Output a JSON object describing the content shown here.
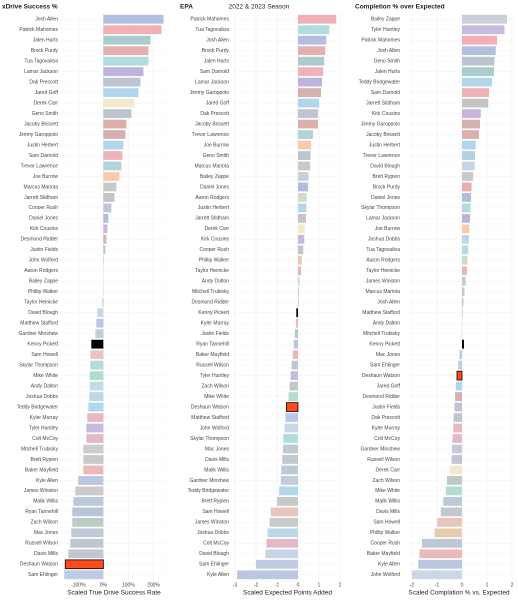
{
  "subtitle": "2022 & 2023 Season",
  "bar_colors": {
    "Josh Allen": "#b3bfdf",
    "Patrick Mahomes": "#f1b0b6",
    "Jalen Hurts": "#a9cdcd",
    "Brock Purdy": "#e6b0b0",
    "Tua Tagovailoa": "#b1dde1",
    "Lamar Jackson": "#bdb4dd",
    "Dak Prescott": "#bdc5d2",
    "Jared Goff": "#b1d6ec",
    "Derek Carr": "#f3eacb",
    "Geno Smith": "#bcc5cb",
    "Jacoby Brissett": "#dcb0aa",
    "Jimmy Garoppolo": "#d4b0b0",
    "Justin Herbert": "#b1d7ef",
    "Sam Darnold": "#f0b2b9",
    "Trevor Lawrence": "#b1d3d9",
    "Joe Burrow": "#f9cbab",
    "Marcus Mariota": "#c9c9c9",
    "Jarrett Stidham": "#c4c4c4",
    "Cooper Rush": "#bec7d6",
    "Daniel Jones": "#b3bddc",
    "Kirk Cousins": "#c8b6de",
    "Desmond Ridder": "#d6b0b4",
    "Justin Fields": "#bdc3d3",
    "John Wolford": "#cdd6e8",
    "Aaron Rodgers": "#d2dbc8",
    "Bailey Zappe": "#c9ced8",
    "Phillip Walker": "#e6ccaf",
    "Taylor Heinicke": "#e8b7b7",
    "David Blough": "#c8d5e8",
    "Matthew Stafford": "#bbc8e5",
    "Gardner Minshew": "#c3ccd8",
    "Kenny Pickett": "#000000",
    "Sam Howell": "#e8c6be",
    "Skylar Thompson": "#b1dcdc",
    "Mike White": "#b2dccd",
    "Andy Dalton": "#c4dae8",
    "Joshua Dobbs": "#bbd8e8",
    "Teddy Bridgewater": "#b1d7ea",
    "Kyler Murray": "#e8b8c5",
    "Tyler Huntley": "#c6bbdf",
    "Colt McCoy": "#e4b8c8",
    "Mitchell Trubisky": "#cccccc",
    "Brett Rypien": "#c9c9c9",
    "Baker Mayfield": "#ebb8bc",
    "Kyle Allen": "#bbc7e0",
    "James Winston": "#cbcbcb",
    "Malik Willis": "#bbc9db",
    "Ryan Tannehill": "#b5c7d9",
    "Zach Wilson": "#bccbc3",
    "Mac Jones": "#c1c8d7",
    "Russell Wilson": "#bfc6d0",
    "Davis Mills": "#c3c7ce",
    "Deshaun Watson": "#ff4a1c",
    "Sam Ehlinger": "#bdcbe4"
  },
  "outlined": [
    "Deshaun Watson"
  ],
  "chart_data": [
    {
      "type": "barh",
      "title": "xDrive Success %",
      "x_label": "Scaled True Drive Success Rate",
      "categories": [
        "Josh Allen",
        "Patrick Mahomes",
        "Jalen Hurts",
        "Brock Purdy",
        "Tua Tagovailoa",
        "Lamar Jackson",
        "Dak Prescott",
        "Jared Goff",
        "Derek Carr",
        "Geno Smith",
        "Jacoby Brissett",
        "Jimmy Garoppolo",
        "Justin Herbert",
        "Sam Darnold",
        "Trevor Lawrence",
        "Joe Burrow",
        "Marcus Mariota",
        "Jarrett Stidham",
        "Cooper Rush",
        "Daniel Jones",
        "Kirk Cousins",
        "Desmond Ridder",
        "Justin Fields",
        "John Wolford",
        "Aaron Rodgers",
        "Bailey Zappe",
        "Phillip Walker",
        "Taylor Heinicke",
        "David Blough",
        "Matthew Stafford",
        "Gardner Minshew",
        "Kenny Pickett",
        "Sam Howell",
        "Skylar Thompson",
        "Mike White",
        "Andy Dalton",
        "Joshua Dobbs",
        "Teddy Bridgewater",
        "Kyler Murray",
        "Tyler Huntley",
        "Colt McCoy",
        "Mitchell Trubisky",
        "Brett Rypien",
        "Baker Mayfield",
        "Kyle Allen",
        "James Winston",
        "Malik Willis",
        "Ryan Tannehill",
        "Zach Wilson",
        "Mac Jones",
        "Russell Wilson",
        "Davis Mills",
        "Deshaun Watson",
        "Sam Ehlinger"
      ],
      "values": [
        240,
        232,
        188,
        180,
        180,
        160,
        148,
        140,
        124,
        112,
        92,
        88,
        80,
        76,
        72,
        64,
        52,
        44,
        32,
        20,
        16,
        12,
        8,
        3,
        0,
        -1,
        -2,
        -4,
        -24,
        -28,
        -32,
        -48,
        -52,
        -52,
        -54,
        -54,
        -56,
        -60,
        -64,
        -68,
        -68,
        -80,
        -80,
        -80,
        -100,
        -112,
        -120,
        -124,
        -124,
        -128,
        -132,
        -140,
        -152,
        -156
      ],
      "xlim": [
        -165,
        250
      ],
      "xticks": [
        {
          "value": -100,
          "label": "-100%"
        },
        {
          "value": 0,
          "label": "0%"
        },
        {
          "value": 100,
          "label": "100%"
        },
        {
          "value": 200,
          "label": "200%"
        }
      ]
    },
    {
      "type": "barh",
      "title": "EPA",
      "x_label": "Scaled Expected Points Added",
      "categories": [
        "Patrick Mahomes",
        "Tua Tagovailoa",
        "Josh Allen",
        "Brock Purdy",
        "Jalen Hurts",
        "Sam Darnold",
        "Lamar Jackson",
        "Jimmy Garoppolo",
        "Jared Goff",
        "Dak Prescott",
        "Jacoby Brissett",
        "Trevor Lawrence",
        "Joe Burrow",
        "Geno Smith",
        "Marcus Mariota",
        "Bailey Zappe",
        "Daniel Jones",
        "Aaron Rodgers",
        "Justin Herbert",
        "Jarrett Stidham",
        "Derek Carr",
        "Kirk Cousins",
        "Cooper Rush",
        "Phillip Walker",
        "Taylor Heinicke",
        "Andy Dalton",
        "Mitchell Trubisky",
        "Desmond Ridder",
        "Kenny Pickett",
        "Kyler Murray",
        "Justin Fields",
        "Ryan Tannehill",
        "Baker Mayfield",
        "Russell Wilson",
        "Tyler Huntley",
        "Zach Wilson",
        "Mike White",
        "Deshaun Watson",
        "Matthew Stafford",
        "John Wolford",
        "Skylar Thompson",
        "Mac Jones",
        "Davis Mills",
        "Malik Willis",
        "Gardner Minshew",
        "Teddy Bridgewater",
        "Brett Rypien",
        "Sam Howell",
        "James Winston",
        "Joshua Dobbs",
        "Colt McCoy",
        "David Blough",
        "Sam Ehlinger",
        "Kyle Allen"
      ],
      "values": [
        1.83,
        1.5,
        1.35,
        1.3,
        1.25,
        1.2,
        1.15,
        1.1,
        1.0,
        0.95,
        0.95,
        0.72,
        0.62,
        0.6,
        0.58,
        0.5,
        0.48,
        0.42,
        0.4,
        0.38,
        0.32,
        0.3,
        0.25,
        0.18,
        0.15,
        0.08,
        0.05,
        0.03,
        -0.08,
        -0.1,
        -0.15,
        -0.2,
        -0.25,
        -0.3,
        -0.35,
        -0.4,
        -0.45,
        -0.55,
        -0.6,
        -0.65,
        -0.7,
        -0.72,
        -0.75,
        -0.8,
        -0.82,
        -0.9,
        -1.0,
        -1.3,
        -1.35,
        -1.45,
        -1.5,
        -1.55,
        -2.0,
        -2.9
      ],
      "xlim": [
        -3.1,
        2.1
      ],
      "xticks": [
        -3,
        -2,
        -1,
        0,
        1,
        2
      ]
    },
    {
      "type": "barh",
      "title": "Completion % over Expected",
      "x_label": "Scaled Complation % vs. Expected",
      "categories": [
        "Bailey Zappe",
        "Tyler Huntley",
        "Patrick Mahomes",
        "Josh Allen",
        "Geno Smith",
        "Jalen Hurts",
        "Teddy Bridgewater",
        "Sam Darnold",
        "Jarrett Stidham",
        "Kirk Cousins",
        "Jimmy Garoppolo",
        "Jacoby Brissett",
        "Justin Herbert",
        "Trevor Lawrence",
        "David Blough",
        "Brett Rypien",
        "Brock Purdy",
        "Daniel Jones",
        "Skylar Thompson",
        "Lamar Jackson",
        "Joe Burrow",
        "Joshua Dobbs",
        "Tua Tagovailoa",
        "Aaron Rodgers",
        "Taylor Heinicke",
        "James Winston",
        "Marcus Mariota",
        "Josh Allen",
        "Matthew Stafford",
        "Andy Dalton",
        "Mitchell Trubisky",
        "Kenny Pickett",
        "Mac Jones",
        "Sam Ehlinger",
        "Deshaun Watson",
        "Jared Goff",
        "Desmond Ridder",
        "Justin Fields",
        "Dak Prescott",
        "Kyler Murray",
        "Colt McCoy",
        "Gardner Minshew",
        "Russell Wilson",
        "Derek Carr",
        "Zach Wilson",
        "Mike White",
        "Malik Willis",
        "Davis Mills",
        "Sam Howell",
        "Phillip Walker",
        "Cooper Rush",
        "Baker Mayfield",
        "Kyle Allen",
        "John Wolford"
      ],
      "values": [
        1.8,
        1.7,
        1.4,
        1.35,
        1.3,
        1.28,
        1.2,
        1.08,
        1.05,
        0.75,
        0.72,
        0.68,
        0.55,
        0.52,
        0.5,
        0.45,
        0.38,
        0.36,
        0.34,
        0.32,
        0.3,
        0.28,
        0.25,
        0.22,
        0.2,
        0.15,
        0.1,
        0.05,
        0.03,
        0.01,
        -0.01,
        0.08,
        -0.1,
        -0.15,
        -0.2,
        -0.25,
        -0.28,
        -0.3,
        -0.33,
        -0.35,
        -0.38,
        -0.4,
        -0.42,
        -0.5,
        -0.6,
        -0.65,
        -0.75,
        -0.85,
        -1.0,
        -1.1,
        -1.6,
        -1.7,
        -1.75,
        -2.0
      ],
      "xlim": [
        -2.32,
        2.08
      ],
      "xticks": [
        -2,
        -1,
        0,
        1,
        2
      ]
    }
  ]
}
